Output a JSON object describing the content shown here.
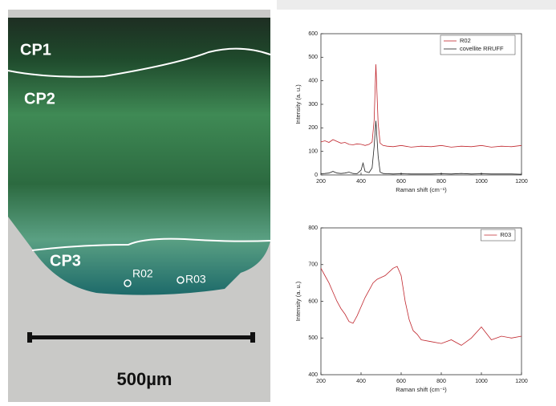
{
  "image": {
    "labels": [
      "CP1",
      "CP2",
      "CP3"
    ],
    "points": [
      "R02",
      "R03"
    ],
    "scale": "500µm"
  },
  "chart_data": [
    {
      "type": "line",
      "ylabel": "Intensity (a. u.)",
      "xlabel": "Raman shift (cm⁻¹)",
      "xlim": [
        200,
        1200
      ],
      "xticks": [
        200,
        400,
        600,
        800,
        1000,
        1200
      ],
      "ylim": [
        0,
        600
      ],
      "yticks": [
        0,
        100,
        200,
        300,
        400,
        500,
        600
      ],
      "legend": "upper right",
      "x": [
        200,
        220,
        240,
        260,
        280,
        300,
        320,
        340,
        360,
        380,
        400,
        410,
        420,
        440,
        455,
        465,
        474,
        485,
        495,
        510,
        530,
        560,
        600,
        650,
        700,
        750,
        800,
        850,
        900,
        950,
        1000,
        1050,
        1100,
        1150,
        1200
      ],
      "series": [
        {
          "name": "R02",
          "color": "#c0262d",
          "values": [
            140,
            145,
            138,
            150,
            142,
            135,
            138,
            130,
            128,
            132,
            130,
            128,
            125,
            130,
            140,
            230,
            470,
            220,
            135,
            125,
            122,
            120,
            125,
            118,
            122,
            120,
            125,
            118,
            122,
            120,
            125,
            118,
            122,
            120,
            125
          ]
        },
        {
          "name": "covellite RRUFF",
          "color": "#222222",
          "values": [
            5,
            6,
            8,
            15,
            8,
            6,
            8,
            12,
            6,
            5,
            20,
            50,
            15,
            10,
            30,
            120,
            230,
            80,
            12,
            6,
            5,
            4,
            5,
            4,
            4,
            4,
            5,
            4,
            6,
            4,
            5,
            4,
            4,
            4,
            3
          ]
        }
      ]
    },
    {
      "type": "line",
      "ylabel": "Intensity (a. u.)",
      "xlabel": "Raman shift (cm⁻¹)",
      "xlim": [
        200,
        1200
      ],
      "xticks": [
        200,
        400,
        600,
        800,
        1000,
        1200
      ],
      "ylim": [
        400,
        800
      ],
      "yticks": [
        400,
        500,
        600,
        700,
        800
      ],
      "legend": "upper right",
      "x": [
        200,
        220,
        240,
        260,
        280,
        300,
        320,
        340,
        360,
        380,
        400,
        420,
        440,
        460,
        480,
        500,
        520,
        540,
        560,
        580,
        600,
        620,
        640,
        660,
        680,
        700,
        750,
        800,
        850,
        900,
        950,
        1000,
        1050,
        1100,
        1150,
        1200
      ],
      "series": [
        {
          "name": "R03",
          "color": "#c0262d",
          "values": [
            690,
            670,
            650,
            625,
            600,
            580,
            565,
            545,
            540,
            560,
            585,
            610,
            630,
            650,
            660,
            665,
            670,
            680,
            690,
            695,
            670,
            600,
            550,
            520,
            510,
            495,
            490,
            485,
            495,
            480,
            500,
            530,
            495,
            505,
            500,
            505
          ]
        }
      ]
    }
  ]
}
